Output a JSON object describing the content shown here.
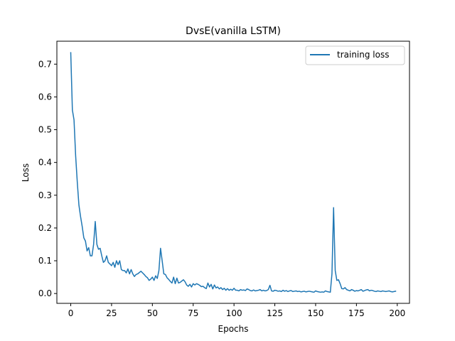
{
  "chart_data": {
    "type": "line",
    "title": "DvsE(vanilla LSTM)",
    "xlabel": "Epochs",
    "ylabel": "Loss",
    "xlim": [
      -8.5,
      207.5
    ],
    "ylim": [
      -0.03,
      0.77
    ],
    "xticks": [
      0,
      25,
      50,
      75,
      100,
      125,
      150,
      175,
      200
    ],
    "yticks": [
      0.0,
      0.1,
      0.2,
      0.3,
      0.4,
      0.5,
      0.6,
      0.7
    ],
    "x_tick_labels": [
      "0",
      "25",
      "50",
      "75",
      "100",
      "125",
      "150",
      "175",
      "200"
    ],
    "y_tick_labels": [
      "0.0",
      "0.1",
      "0.2",
      "0.3",
      "0.4",
      "0.5",
      "0.6",
      "0.7"
    ],
    "grid": false,
    "legend_position": "top-right",
    "series": [
      {
        "name": "training loss",
        "color": "#1f77b4",
        "x_start": 0,
        "x_step": 1,
        "values": [
          0.735,
          0.56,
          0.53,
          0.42,
          0.34,
          0.27,
          0.235,
          0.205,
          0.17,
          0.16,
          0.13,
          0.14,
          0.115,
          0.115,
          0.15,
          0.22,
          0.15,
          0.135,
          0.138,
          0.115,
          0.095,
          0.1,
          0.115,
          0.095,
          0.09,
          0.085,
          0.095,
          0.08,
          0.1,
          0.088,
          0.1,
          0.073,
          0.07,
          0.07,
          0.063,
          0.075,
          0.06,
          0.073,
          0.06,
          0.052,
          0.058,
          0.06,
          0.064,
          0.068,
          0.063,
          0.058,
          0.052,
          0.048,
          0.04,
          0.044,
          0.05,
          0.04,
          0.054,
          0.046,
          0.07,
          0.138,
          0.1,
          0.06,
          0.058,
          0.048,
          0.043,
          0.037,
          0.032,
          0.05,
          0.03,
          0.047,
          0.032,
          0.034,
          0.038,
          0.042,
          0.036,
          0.026,
          0.022,
          0.028,
          0.02,
          0.03,
          0.026,
          0.03,
          0.028,
          0.025,
          0.021,
          0.022,
          0.018,
          0.015,
          0.032,
          0.02,
          0.028,
          0.014,
          0.026,
          0.017,
          0.02,
          0.014,
          0.018,
          0.012,
          0.016,
          0.01,
          0.015,
          0.01,
          0.013,
          0.01,
          0.016,
          0.01,
          0.01,
          0.008,
          0.012,
          0.01,
          0.011,
          0.009,
          0.014,
          0.012,
          0.009,
          0.008,
          0.011,
          0.008,
          0.009,
          0.01,
          0.012,
          0.008,
          0.01,
          0.008,
          0.009,
          0.012,
          0.025,
          0.008,
          0.007,
          0.01,
          0.009,
          0.007,
          0.008,
          0.006,
          0.01,
          0.007,
          0.009,
          0.006,
          0.008,
          0.009,
          0.006,
          0.007,
          0.008,
          0.006,
          0.007,
          0.005,
          0.006,
          0.007,
          0.005,
          0.006,
          0.007,
          0.006,
          0.005,
          0.004,
          0.008,
          0.006,
          0.005,
          0.004,
          0.005,
          0.004,
          0.008,
          0.006,
          0.005,
          0.004,
          0.06,
          0.262,
          0.07,
          0.04,
          0.042,
          0.03,
          0.015,
          0.014,
          0.018,
          0.012,
          0.01,
          0.008,
          0.012,
          0.01,
          0.007,
          0.009,
          0.008,
          0.01,
          0.012,
          0.007,
          0.009,
          0.011,
          0.012,
          0.008,
          0.01,
          0.009,
          0.007,
          0.006,
          0.008,
          0.007,
          0.006,
          0.008,
          0.007,
          0.006,
          0.007,
          0.008,
          0.006,
          0.005,
          0.006,
          0.007
        ]
      }
    ]
  }
}
